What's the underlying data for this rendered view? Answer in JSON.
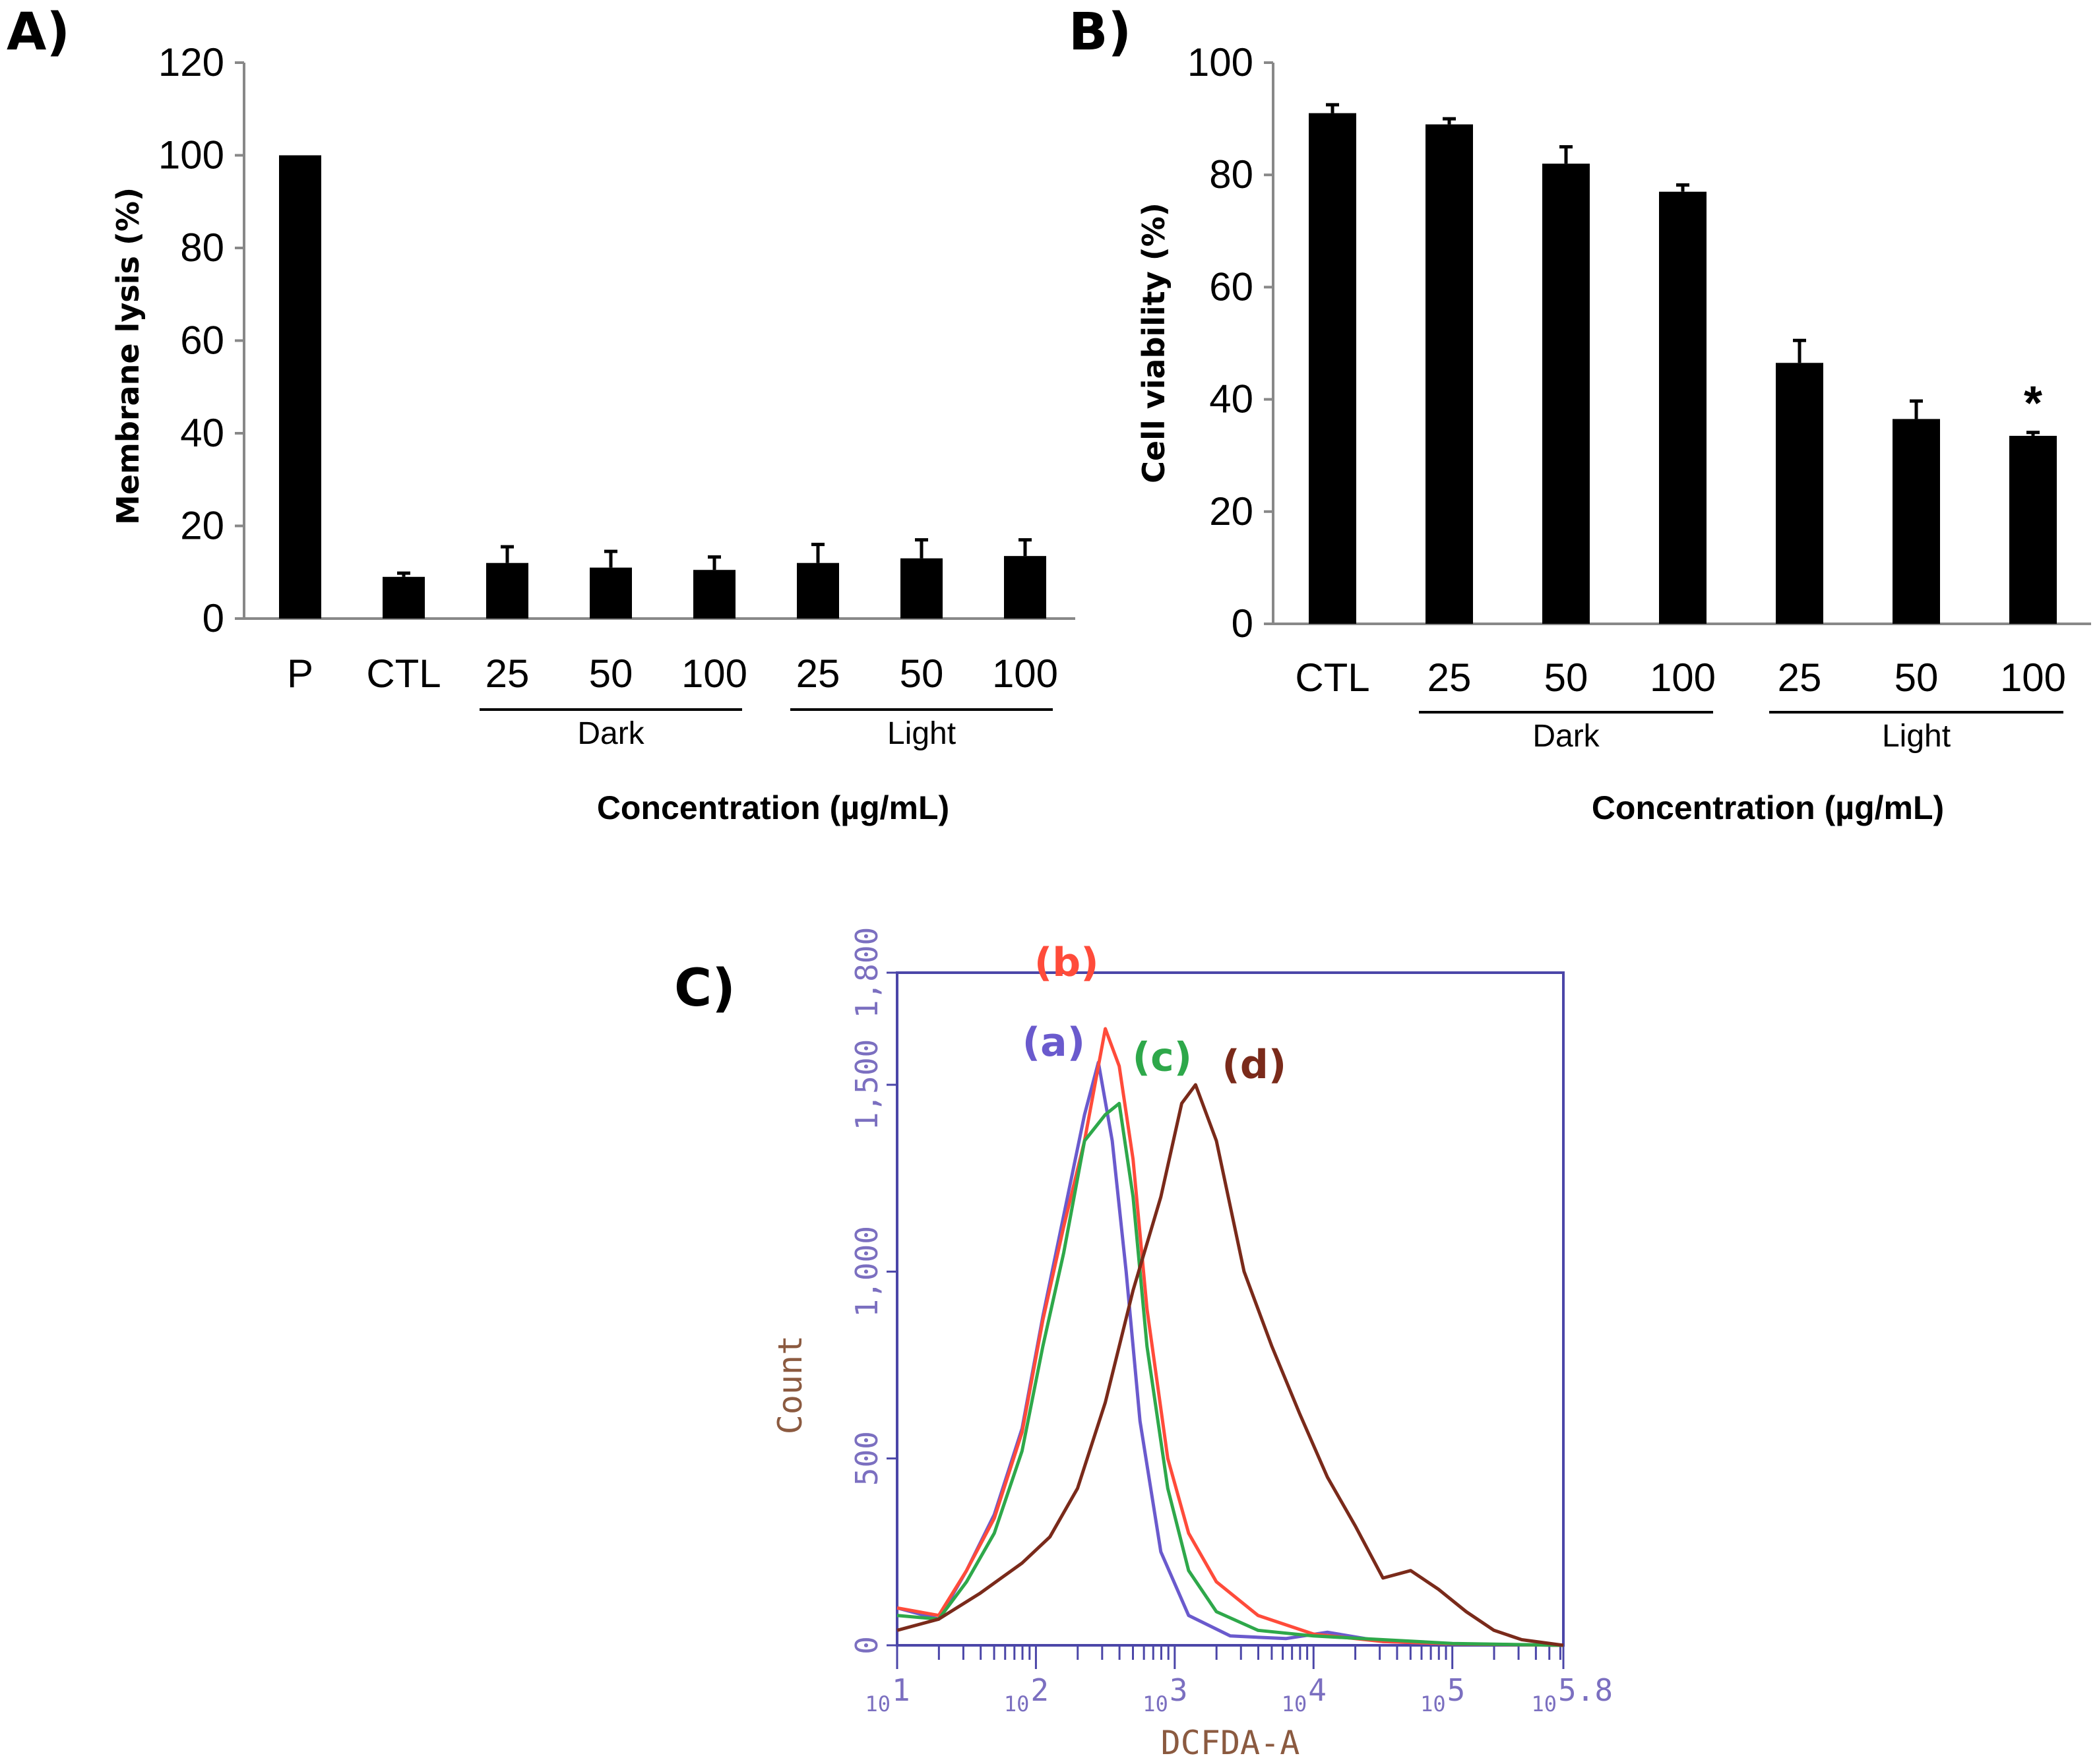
{
  "chart_data": [
    {
      "panel": "A)",
      "type": "bar",
      "categories": [
        "P",
        "CTL",
        "25",
        "50",
        "100",
        "25",
        "50",
        "100"
      ],
      "values": [
        100,
        9,
        12,
        11,
        10.5,
        12,
        13,
        13.5
      ],
      "errors": [
        0,
        0.8,
        3.5,
        3.5,
        2.8,
        4,
        4,
        3.5
      ],
      "groups": [
        {
          "label": "Dark",
          "from": 2,
          "to": 4
        },
        {
          "label": "Light",
          "from": 5,
          "to": 7
        }
      ],
      "xlabel": "Concentration (µg/mL)",
      "ylabel": "Membrane lysis (%)",
      "ylim": [
        0,
        120
      ],
      "yticks": [
        "0",
        "20",
        "40",
        "60",
        "80",
        "100",
        "120"
      ],
      "color": "#000000"
    },
    {
      "panel": "B)",
      "type": "bar",
      "categories": [
        "CTL",
        "25",
        "50",
        "100",
        "25",
        "50",
        "100"
      ],
      "values": [
        91,
        89,
        82,
        77,
        46.5,
        36.5,
        33.5
      ],
      "errors": [
        1.5,
        1,
        3,
        1.2,
        4,
        3.2,
        0.6
      ],
      "groups": [
        {
          "label": "Dark",
          "from": 1,
          "to": 3
        },
        {
          "label": "Light",
          "from": 4,
          "to": 6
        }
      ],
      "annotations": [
        {
          "category_index": 6,
          "text": "*"
        }
      ],
      "xlabel": "Concentration (µg/mL)",
      "ylabel": "Cell viability (%)",
      "ylim": [
        0,
        100
      ],
      "yticks": [
        "0",
        "20",
        "40",
        "60",
        "80",
        "100"
      ],
      "color": "#000000"
    },
    {
      "panel": "C)",
      "type": "line",
      "xscale": "log",
      "xlim": [
        1,
        5.8
      ],
      "ylim": [
        0,
        1800
      ],
      "xlabel": "DCFDA-A",
      "ylabel": "Count",
      "yticks": [
        "0",
        "500",
        "1,000",
        "1,500",
        "1,800"
      ],
      "xticks": [
        {
          "base": "10",
          "exp": "1"
        },
        {
          "base": "10",
          "exp": "2"
        },
        {
          "base": "10",
          "exp": "3"
        },
        {
          "base": "10",
          "exp": "4"
        },
        {
          "base": "10",
          "exp": "5"
        },
        {
          "base": "10",
          "exp": "5.8"
        }
      ],
      "series": [
        {
          "name": "(a)",
          "color": "#6a5acd",
          "x": [
            1.0,
            1.3,
            1.5,
            1.7,
            1.9,
            2.05,
            2.2,
            2.35,
            2.45,
            2.55,
            2.65,
            2.75,
            2.9,
            3.1,
            3.4,
            3.8,
            4.1,
            4.5,
            5.0,
            5.8
          ],
          "y": [
            100,
            70,
            200,
            350,
            580,
            880,
            1150,
            1420,
            1560,
            1350,
            1000,
            600,
            250,
            80,
            25,
            18,
            35,
            10,
            4,
            0
          ]
        },
        {
          "name": "(b)",
          "color": "#ff4b3a",
          "x": [
            1.0,
            1.3,
            1.5,
            1.7,
            1.9,
            2.05,
            2.2,
            2.35,
            2.5,
            2.6,
            2.7,
            2.8,
            2.95,
            3.1,
            3.3,
            3.6,
            4.0,
            4.5,
            5.0,
            5.8
          ],
          "y": [
            100,
            80,
            200,
            340,
            570,
            870,
            1120,
            1350,
            1650,
            1550,
            1300,
            900,
            500,
            300,
            170,
            80,
            30,
            10,
            4,
            0
          ]
        },
        {
          "name": "(c)",
          "color": "#2ea84a",
          "x": [
            1.0,
            1.3,
            1.5,
            1.7,
            1.9,
            2.05,
            2.2,
            2.35,
            2.5,
            2.6,
            2.7,
            2.8,
            2.95,
            3.1,
            3.3,
            3.6,
            4.0,
            4.5,
            5.0,
            5.8
          ],
          "y": [
            80,
            70,
            170,
            300,
            520,
            800,
            1050,
            1350,
            1420,
            1450,
            1200,
            800,
            420,
            200,
            90,
            40,
            25,
            15,
            5,
            0
          ]
        },
        {
          "name": "(d)",
          "color": "#7a2a1a",
          "x": [
            1.0,
            1.3,
            1.6,
            1.9,
            2.1,
            2.3,
            2.5,
            2.7,
            2.9,
            3.05,
            3.15,
            3.3,
            3.5,
            3.7,
            3.9,
            4.1,
            4.3,
            4.5,
            4.7,
            4.9,
            5.1,
            5.3,
            5.5,
            5.8
          ],
          "y": [
            40,
            70,
            140,
            220,
            290,
            420,
            650,
            950,
            1200,
            1450,
            1500,
            1350,
            1000,
            800,
            620,
            450,
            320,
            180,
            200,
            150,
            90,
            40,
            15,
            0
          ]
        }
      ]
    }
  ]
}
